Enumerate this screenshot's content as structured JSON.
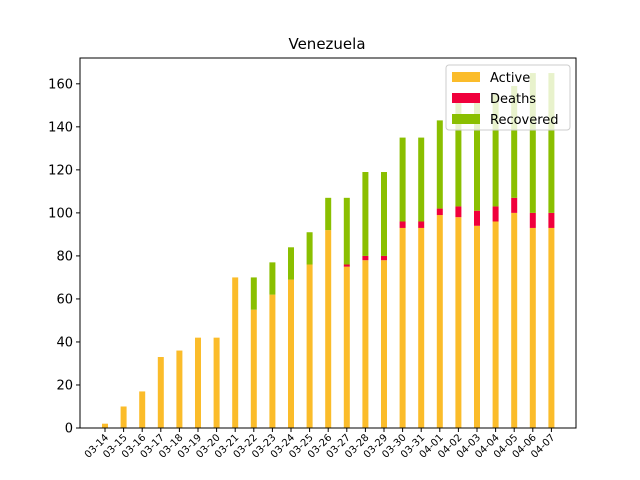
{
  "chart_data": {
    "type": "bar",
    "stacked": true,
    "title": "Venezuela",
    "xlabel": "",
    "ylabel": "",
    "ylim": [
      0,
      172
    ],
    "yticks": [
      0,
      20,
      40,
      60,
      80,
      100,
      120,
      140,
      160
    ],
    "categories": [
      "03-14",
      "03-15",
      "03-16",
      "03-17",
      "03-18",
      "03-19",
      "03-20",
      "03-21",
      "03-22",
      "03-23",
      "03-24",
      "03-25",
      "03-26",
      "03-27",
      "03-28",
      "03-29",
      "03-30",
      "03-31",
      "04-01",
      "04-02",
      "04-03",
      "04-04",
      "04-05",
      "04-06",
      "04-07"
    ],
    "series": [
      {
        "name": "Active",
        "color": "#fbbc2a",
        "values": [
          2,
          10,
          17,
          33,
          36,
          42,
          42,
          70,
          55,
          62,
          69,
          76,
          92,
          75,
          78,
          78,
          93,
          93,
          99,
          98,
          94,
          96,
          100,
          93,
          93
        ]
      },
      {
        "name": "Deaths",
        "color": "#f0003c",
        "values": [
          0,
          0,
          0,
          0,
          0,
          0,
          0,
          0,
          0,
          0,
          0,
          0,
          0,
          1,
          2,
          2,
          3,
          3,
          3,
          5,
          7,
          7,
          7,
          7,
          7
        ]
      },
      {
        "name": "Recovered",
        "color": "#8abf00",
        "values": [
          0,
          0,
          0,
          0,
          0,
          0,
          0,
          0,
          15,
          15,
          15,
          15,
          15,
          31,
          39,
          39,
          39,
          39,
          41,
          52,
          52,
          52,
          52,
          65,
          65
        ]
      }
    ],
    "legend_position": "top-right",
    "grid": false
  }
}
